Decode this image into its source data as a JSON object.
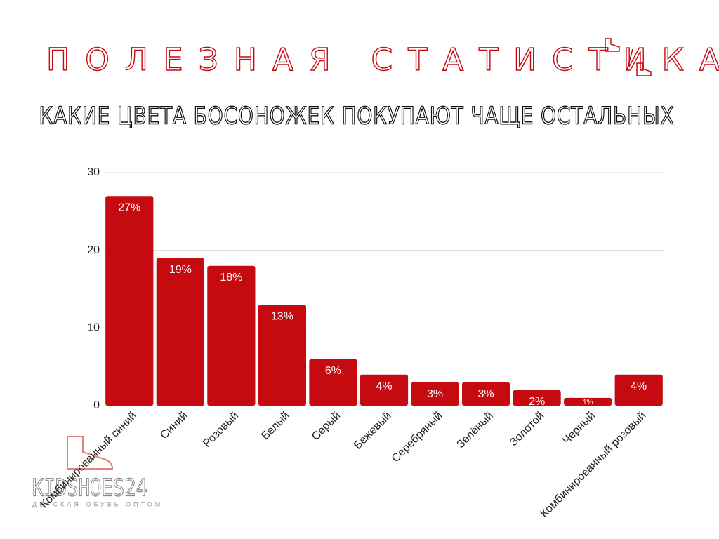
{
  "chart_data": {
    "type": "bar",
    "title": "ПОЛЕЗНАЯ СТАТИСТИКА",
    "subtitle": "КАКИЕ ЦВЕТА БОСОНОЖЕК ПОКУПАЮТ ЧАЩЕ ОСТАЛЬНЫХ",
    "categories": [
      "Комбинированный синий",
      "Синий",
      "Розовый",
      "Белый",
      "Серый",
      "Бежевый",
      "Серебряный",
      "Зелёный",
      "Золотой",
      "Черный",
      "Комбинированный розовый"
    ],
    "values": [
      27,
      19,
      18,
      13,
      6,
      4,
      3,
      3,
      2,
      1,
      4
    ],
    "value_labels": [
      "27%",
      "19%",
      "18%",
      "13%",
      "6%",
      "4%",
      "3%",
      "3%",
      "2%",
      "1%",
      "4%"
    ],
    "color": "#c50a10",
    "ylim": [
      0,
      30
    ],
    "yticks": [
      0,
      10,
      20,
      30
    ],
    "grid": true
  },
  "logo": {
    "name": "KIDSHOES24",
    "tagline": "ДЕТСКАЯ ОБУВЬ ОПТОМ"
  }
}
